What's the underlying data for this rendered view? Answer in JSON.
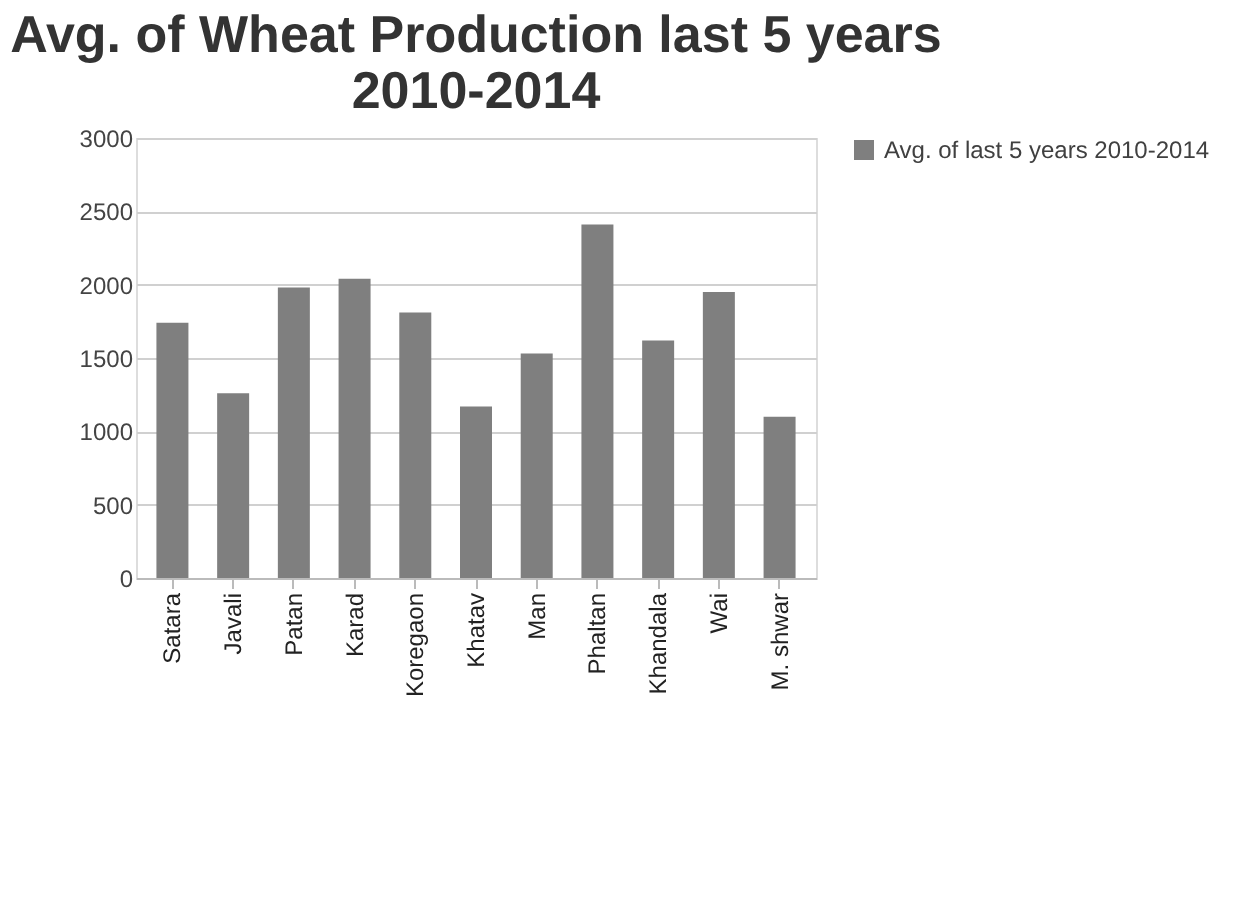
{
  "chart_data": {
    "type": "bar",
    "title": "Avg. of Wheat Production last 5 years 2010-2014",
    "categories": [
      "Satara",
      "Javali",
      "Patan",
      "Karad",
      "Koregaon",
      "Khatav",
      "Man",
      "Phaltan",
      "Khandala",
      "Wai",
      "M. shwar"
    ],
    "series": [
      {
        "name": "Avg. of last 5 years 2010-2014",
        "color": "#7f7f7f",
        "values": [
          1740,
          1260,
          1980,
          2040,
          1810,
          1170,
          1530,
          2410,
          1620,
          1950,
          1100
        ]
      }
    ],
    "ylim": [
      0,
      3000
    ],
    "yticks": [
      0,
      500,
      1000,
      1500,
      2000,
      2500,
      3000
    ],
    "grid": "y",
    "legend": "right"
  }
}
